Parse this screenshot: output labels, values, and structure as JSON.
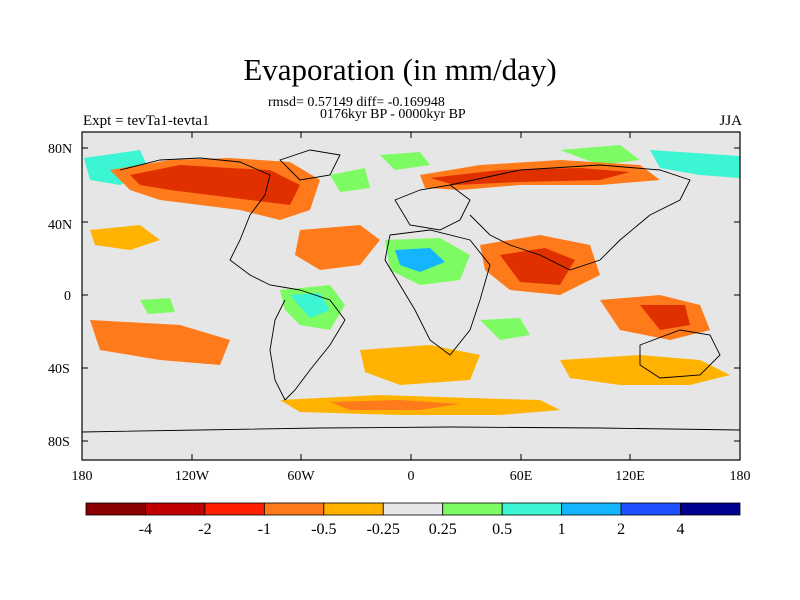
{
  "title": "Evaporation (in mm/day)",
  "stats_line": "rmsd= 0.57149 diff= -0.169948",
  "period_line": "0176kyr BP - 0000kyr BP",
  "experiment_label": "Expt = tevTa1-tevta1",
  "season_label": "JJA",
  "lat_ticks": [
    "80N",
    "40N",
    "0",
    "40S",
    "80S"
  ],
  "lon_ticks": [
    "180",
    "120W",
    "60W",
    "0",
    "60E",
    "120E",
    "180"
  ],
  "colorbar": {
    "labels": [
      "-4",
      "-2",
      "-1",
      "-0.5",
      "-0.25",
      "0.25",
      "0.5",
      "1",
      "2",
      "4"
    ],
    "colors": [
      "#8b0000",
      "#c00000",
      "#ff2000",
      "#ff7a1a",
      "#ffb300",
      "#e6e6e6",
      "#7cfc62",
      "#3cf5d2",
      "#14b4ff",
      "#1e50ff",
      "#000090"
    ]
  },
  "palette": {
    "background": "#e6e6e6",
    "strong_decrease": "#e03000",
    "moderate_decrease": "#ff7a1a",
    "weak_decrease": "#ffb300",
    "weak_increase": "#7cfc62",
    "moderate_increase": "#3cf5d2",
    "strong_increase": "#14b4ff"
  }
}
